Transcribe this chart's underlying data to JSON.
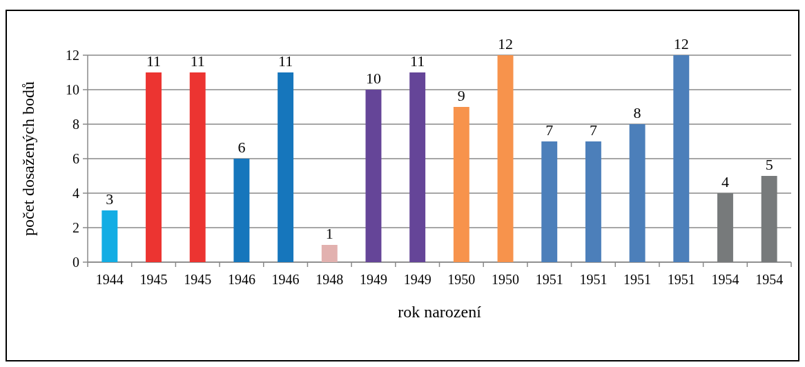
{
  "chart_data": {
    "type": "bar",
    "xlabel": "rok narození",
    "ylabel": "počet dosažených bodů",
    "categories": [
      "1944",
      "1945",
      "1945",
      "1946",
      "1946",
      "1948",
      "1949",
      "1949",
      "1950",
      "1950",
      "1951",
      "1951",
      "1951",
      "1951",
      "1954",
      "1954"
    ],
    "values": [
      3,
      11,
      11,
      6,
      11,
      1,
      10,
      11,
      9,
      12,
      7,
      7,
      8,
      12,
      4,
      5
    ],
    "colors": [
      "#13ade4",
      "#ec3431",
      "#ec3431",
      "#1676bc",
      "#1676bc",
      "#e2b1af",
      "#654598",
      "#654598",
      "#f7934c",
      "#f7934c",
      "#4c7fba",
      "#4c7fba",
      "#4c7fba",
      "#4c7fba",
      "#777a7b",
      "#777a7b"
    ],
    "ylim": [
      0,
      12
    ],
    "yticks": [
      0,
      2,
      4,
      6,
      8,
      10,
      12
    ],
    "grid": "y",
    "data_labels": true
  }
}
